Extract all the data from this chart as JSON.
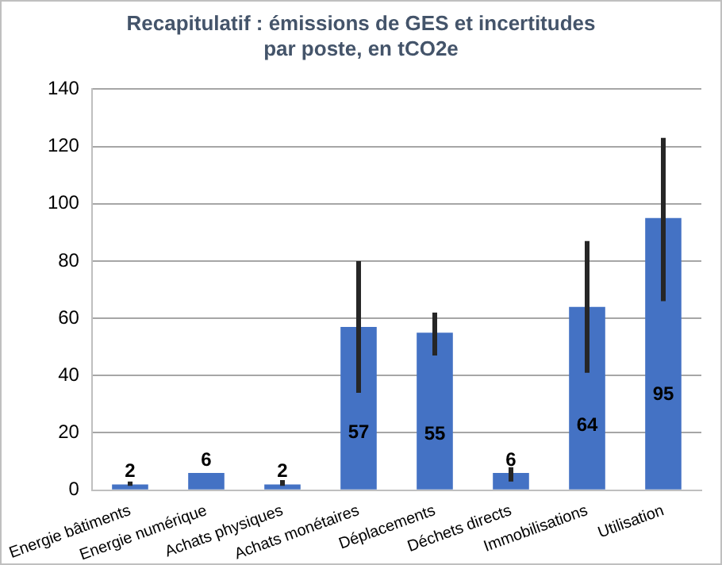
{
  "chart_data": {
    "type": "bar",
    "title": "Recapitulatif : émissions de GES et incertitudes par poste, en tCO2e",
    "categories": [
      "Energie bâtiments",
      "Energie numérique",
      "Achats physiques",
      "Achats monétaires",
      "Déplacements",
      "Déchets directs",
      "Immobilisations",
      "Utilisation"
    ],
    "values": [
      2,
      6,
      2,
      57,
      55,
      6,
      64,
      95
    ],
    "errors": [
      [
        1.5,
        3
      ],
      null,
      [
        1.5,
        3.5
      ],
      [
        34,
        80
      ],
      [
        47,
        62
      ],
      [
        3,
        8
      ],
      [
        41,
        87
      ],
      [
        66,
        123
      ]
    ],
    "color": "#4472c4",
    "data_labels": true,
    "ylim": [
      0,
      140
    ],
    "yticks": [
      0,
      20,
      40,
      60,
      80,
      100,
      120,
      140
    ],
    "grid": "y",
    "legend": false
  }
}
